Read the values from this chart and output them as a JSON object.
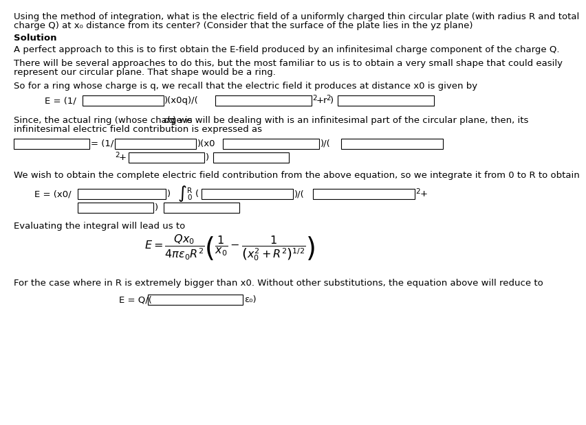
{
  "bg_color": "#ffffff",
  "line1": "Using the method of integration, what is the electric field of a uniformly charged thin circular plate (with radius R and total",
  "line2": "charge Q) at x₀ distance from its center? (Consider that the surface of the plate lies in the yz plane)",
  "solution": "Solution",
  "para1": "A perfect approach to this is to first obtain the E-field produced by an infinitesimal charge component of the charge Q.",
  "para2a": "There will be several approaches to do this, but the most familiar to us is to obtain a very small shape that could easily",
  "para2b": "represent our circular plane. That shape would be a ring.",
  "para3": "So for a ring whose charge is q, we recall that the electric field it produces at distance x0 is given by",
  "para4a": "Since, the actual ring (whose charge is ",
  "para4b": "dq",
  "para4c": ") we will be dealing with is an infinitesimal part of the circular plane, then, its",
  "para4d": "infinitesimal electric field contribution is expressed as",
  "para5": "We wish to obtain the complete electric field contribution from the above equation, so we integrate it from 0 to R to obtain",
  "para6": "Evaluating the integral will lead us to",
  "para7": "For the case where in R is extremely bigger than x0. Without other substitutions, the equation above will reduce to",
  "fs": 9.5,
  "fs_small": 7.5,
  "fs_integral": 18,
  "lw": 0.8,
  "box_fc": "#ffffff",
  "box_ec": "#000000"
}
